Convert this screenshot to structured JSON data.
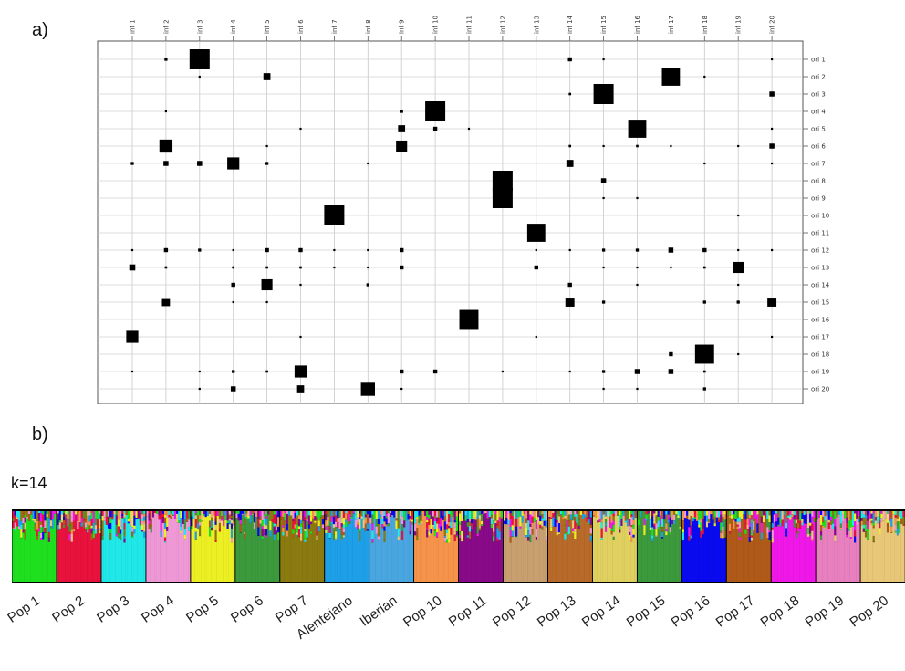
{
  "panel_a_label": "a)",
  "panel_b_label": "b)",
  "k_label": "k=14",
  "chart_data": [
    {
      "type": "heatmap",
      "title": "",
      "columns": [
        "inf 1",
        "inf 2",
        "inf 3",
        "inf 4",
        "inf 5",
        "inf 6",
        "inf 7",
        "inf 8",
        "inf 9",
        "inf 10",
        "inf 11",
        "inf 12",
        "inf 13",
        "inf 14",
        "inf 15",
        "inf 16",
        "inf 17",
        "inf 18",
        "inf 19",
        "inf 20"
      ],
      "rows": [
        "ori 1",
        "ori 2",
        "ori 3",
        "ori 4",
        "ori 5",
        "ori 6",
        "ori 7",
        "ori 8",
        "ori 9",
        "ori 10",
        "ori 11",
        "ori 12",
        "ori 13",
        "ori 14",
        "ori 15",
        "ori 16",
        "ori 17",
        "ori 18",
        "ori 19",
        "ori 20"
      ],
      "value_encoding": "square size (relative, 0-1)",
      "cells": [
        {
          "row": "ori 1",
          "col": "inf 2",
          "value": 0.15
        },
        {
          "row": "ori 1",
          "col": "inf 3",
          "value": 1.0
        },
        {
          "row": "ori 1",
          "col": "inf 14",
          "value": 0.2
        },
        {
          "row": "ori 1",
          "col": "inf 15",
          "value": 0.1
        },
        {
          "row": "ori 1",
          "col": "inf 20",
          "value": 0.1
        },
        {
          "row": "ori 2",
          "col": "inf 3",
          "value": 0.07
        },
        {
          "row": "ori 2",
          "col": "inf 5",
          "value": 0.35
        },
        {
          "row": "ori 2",
          "col": "inf 17",
          "value": 0.9
        },
        {
          "row": "ori 2",
          "col": "inf 18",
          "value": 0.07
        },
        {
          "row": "ori 3",
          "col": "inf 14",
          "value": 0.12
        },
        {
          "row": "ori 3",
          "col": "inf 15",
          "value": 1.0
        },
        {
          "row": "ori 3",
          "col": "inf 20",
          "value": 0.25
        },
        {
          "row": "ori 4",
          "col": "inf 2",
          "value": 0.07
        },
        {
          "row": "ori 4",
          "col": "inf 9",
          "value": 0.15
        },
        {
          "row": "ori 4",
          "col": "inf 10",
          "value": 1.0
        },
        {
          "row": "ori 5",
          "col": "inf 6",
          "value": 0.07
        },
        {
          "row": "ori 5",
          "col": "inf 9",
          "value": 0.35
        },
        {
          "row": "ori 5",
          "col": "inf 10",
          "value": 0.2
        },
        {
          "row": "ori 5",
          "col": "inf 11",
          "value": 0.07
        },
        {
          "row": "ori 5",
          "col": "inf 16",
          "value": 0.9
        },
        {
          "row": "ori 5",
          "col": "inf 20",
          "value": 0.07
        },
        {
          "row": "ori 6",
          "col": "inf 2",
          "value": 0.65
        },
        {
          "row": "ori 6",
          "col": "inf 5",
          "value": 0.07
        },
        {
          "row": "ori 6",
          "col": "inf 9",
          "value": 0.55
        },
        {
          "row": "ori 6",
          "col": "inf 14",
          "value": 0.12
        },
        {
          "row": "ori 6",
          "col": "inf 15",
          "value": 0.07
        },
        {
          "row": "ori 6",
          "col": "inf 16",
          "value": 0.12
        },
        {
          "row": "ori 6",
          "col": "inf 17",
          "value": 0.07
        },
        {
          "row": "ori 6",
          "col": "inf 19",
          "value": 0.07
        },
        {
          "row": "ori 6",
          "col": "inf 20",
          "value": 0.25
        },
        {
          "row": "ori 7",
          "col": "inf 1",
          "value": 0.15
        },
        {
          "row": "ori 7",
          "col": "inf 2",
          "value": 0.25
        },
        {
          "row": "ori 7",
          "col": "inf 3",
          "value": 0.25
        },
        {
          "row": "ori 7",
          "col": "inf 4",
          "value": 0.6
        },
        {
          "row": "ori 7",
          "col": "inf 5",
          "value": 0.15
        },
        {
          "row": "ori 7",
          "col": "inf 8",
          "value": 0.07
        },
        {
          "row": "ori 7",
          "col": "inf 14",
          "value": 0.35
        },
        {
          "row": "ori 7",
          "col": "inf 18",
          "value": 0.07
        },
        {
          "row": "ori 7",
          "col": "inf 20",
          "value": 0.07
        },
        {
          "row": "ori 8",
          "col": "inf 12",
          "value": 1.0
        },
        {
          "row": "ori 8",
          "col": "inf 15",
          "value": 0.25
        },
        {
          "row": "ori 9",
          "col": "inf 12",
          "value": 1.0
        },
        {
          "row": "ori 9",
          "col": "inf 15",
          "value": 0.07
        },
        {
          "row": "ori 9",
          "col": "inf 16",
          "value": 0.1
        },
        {
          "row": "ori 10",
          "col": "inf 7",
          "value": 1.0
        },
        {
          "row": "ori 10",
          "col": "inf 19",
          "value": 0.07
        },
        {
          "row": "ori 11",
          "col": "inf 13",
          "value": 0.9
        },
        {
          "row": "ori 12",
          "col": "inf 1",
          "value": 0.07
        },
        {
          "row": "ori 12",
          "col": "inf 2",
          "value": 0.2
        },
        {
          "row": "ori 12",
          "col": "inf 3",
          "value": 0.15
        },
        {
          "row": "ori 12",
          "col": "inf 4",
          "value": 0.07
        },
        {
          "row": "ori 12",
          "col": "inf 5",
          "value": 0.2
        },
        {
          "row": "ori 12",
          "col": "inf 6",
          "value": 0.2
        },
        {
          "row": "ori 12",
          "col": "inf 7",
          "value": 0.07
        },
        {
          "row": "ori 12",
          "col": "inf 8",
          "value": 0.07
        },
        {
          "row": "ori 12",
          "col": "inf 9",
          "value": 0.2
        },
        {
          "row": "ori 12",
          "col": "inf 13",
          "value": 0.07
        },
        {
          "row": "ori 12",
          "col": "inf 14",
          "value": 0.07
        },
        {
          "row": "ori 12",
          "col": "inf 15",
          "value": 0.15
        },
        {
          "row": "ori 12",
          "col": "inf 16",
          "value": 0.15
        },
        {
          "row": "ori 12",
          "col": "inf 17",
          "value": 0.25
        },
        {
          "row": "ori 12",
          "col": "inf 18",
          "value": 0.2
        },
        {
          "row": "ori 12",
          "col": "inf 19",
          "value": 0.07
        },
        {
          "row": "ori 12",
          "col": "inf 20",
          "value": 0.07
        },
        {
          "row": "ori 13",
          "col": "inf 1",
          "value": 0.3
        },
        {
          "row": "ori 13",
          "col": "inf 2",
          "value": 0.12
        },
        {
          "row": "ori 13",
          "col": "inf 4",
          "value": 0.12
        },
        {
          "row": "ori 13",
          "col": "inf 5",
          "value": 0.12
        },
        {
          "row": "ori 13",
          "col": "inf 6",
          "value": 0.12
        },
        {
          "row": "ori 13",
          "col": "inf 7",
          "value": 0.07
        },
        {
          "row": "ori 13",
          "col": "inf 8",
          "value": 0.07
        },
        {
          "row": "ori 13",
          "col": "inf 9",
          "value": 0.2
        },
        {
          "row": "ori 13",
          "col": "inf 13",
          "value": 0.2
        },
        {
          "row": "ori 13",
          "col": "inf 15",
          "value": 0.07
        },
        {
          "row": "ori 13",
          "col": "inf 16",
          "value": 0.07
        },
        {
          "row": "ori 13",
          "col": "inf 17",
          "value": 0.07
        },
        {
          "row": "ori 13",
          "col": "inf 18",
          "value": 0.12
        },
        {
          "row": "ori 13",
          "col": "inf 19",
          "value": 0.55
        },
        {
          "row": "ori 14",
          "col": "inf 4",
          "value": 0.2
        },
        {
          "row": "ori 14",
          "col": "inf 5",
          "value": 0.55
        },
        {
          "row": "ori 14",
          "col": "inf 6",
          "value": 0.07
        },
        {
          "row": "ori 14",
          "col": "inf 8",
          "value": 0.15
        },
        {
          "row": "ori 14",
          "col": "inf 14",
          "value": 0.2
        },
        {
          "row": "ori 14",
          "col": "inf 16",
          "value": 0.07
        },
        {
          "row": "ori 14",
          "col": "inf 19",
          "value": 0.07
        },
        {
          "row": "ori 15",
          "col": "inf 2",
          "value": 0.4
        },
        {
          "row": "ori 15",
          "col": "inf 4",
          "value": 0.07
        },
        {
          "row": "ori 15",
          "col": "inf 5",
          "value": 0.07
        },
        {
          "row": "ori 15",
          "col": "inf 14",
          "value": 0.45
        },
        {
          "row": "ori 15",
          "col": "inf 15",
          "value": 0.15
        },
        {
          "row": "ori 15",
          "col": "inf 18",
          "value": 0.15
        },
        {
          "row": "ori 15",
          "col": "inf 19",
          "value": 0.15
        },
        {
          "row": "ori 15",
          "col": "inf 20",
          "value": 0.45
        },
        {
          "row": "ori 16",
          "col": "inf 11",
          "value": 0.95
        },
        {
          "row": "ori 17",
          "col": "inf 1",
          "value": 0.6
        },
        {
          "row": "ori 17",
          "col": "inf 6",
          "value": 0.07
        },
        {
          "row": "ori 17",
          "col": "inf 13",
          "value": 0.07
        },
        {
          "row": "ori 17",
          "col": "inf 20",
          "value": 0.07
        },
        {
          "row": "ori 18",
          "col": "inf 17",
          "value": 0.2
        },
        {
          "row": "ori 18",
          "col": "inf 18",
          "value": 0.95
        },
        {
          "row": "ori 18",
          "col": "inf 19",
          "value": 0.07
        },
        {
          "row": "ori 19",
          "col": "inf 1",
          "value": 0.07
        },
        {
          "row": "ori 19",
          "col": "inf 3",
          "value": 0.07
        },
        {
          "row": "ori 19",
          "col": "inf 4",
          "value": 0.15
        },
        {
          "row": "ori 19",
          "col": "inf 5",
          "value": 0.12
        },
        {
          "row": "ori 19",
          "col": "inf 6",
          "value": 0.6
        },
        {
          "row": "ori 19",
          "col": "inf 9",
          "value": 0.2
        },
        {
          "row": "ori 19",
          "col": "inf 10",
          "value": 0.2
        },
        {
          "row": "ori 19",
          "col": "inf 12",
          "value": 0.07
        },
        {
          "row": "ori 19",
          "col": "inf 14",
          "value": 0.07
        },
        {
          "row": "ori 19",
          "col": "inf 15",
          "value": 0.15
        },
        {
          "row": "ori 19",
          "col": "inf 16",
          "value": 0.25
        },
        {
          "row": "ori 19",
          "col": "inf 17",
          "value": 0.25
        },
        {
          "row": "ori 19",
          "col": "inf 18",
          "value": 0.12
        },
        {
          "row": "ori 20",
          "col": "inf 3",
          "value": 0.07
        },
        {
          "row": "ori 20",
          "col": "inf 4",
          "value": 0.25
        },
        {
          "row": "ori 20",
          "col": "inf 6",
          "value": 0.35
        },
        {
          "row": "ori 20",
          "col": "inf 8",
          "value": 0.7
        },
        {
          "row": "ori 20",
          "col": "inf 9",
          "value": 0.07
        },
        {
          "row": "ori 20",
          "col": "inf 15",
          "value": 0.07
        },
        {
          "row": "ori 20",
          "col": "inf 16",
          "value": 0.07
        },
        {
          "row": "ori 20",
          "col": "inf 18",
          "value": 0.15
        }
      ],
      "grid": true
    },
    {
      "type": "bar",
      "title": "",
      "subtype": "stacked ancestry barplot (structure plot)",
      "k": 14,
      "categories": [
        "Pop 1",
        "Pop 2",
        "Pop 3",
        "Pop 4",
        "Pop 5",
        "Pop 6",
        "Pop 7",
        "Alentejano",
        "Iberian",
        "Pop 10",
        "Pop 11",
        "Pop 12",
        "Pop 13",
        "Pop 14",
        "Pop 15",
        "Pop 16",
        "Pop 17",
        "Pop 18",
        "Pop 19",
        "Pop 20"
      ],
      "dominant_cluster_colors": [
        "#1fe01f",
        "#e8123c",
        "#20e8e8",
        "#ef98d6",
        "#ecf023",
        "#3c9a3c",
        "#8a7a10",
        "#1ea0e8",
        "#4aa6e0",
        "#f5934a",
        "#880a88",
        "#c8a070",
        "#b86a2a",
        "#e0d060",
        "#3c9a3c",
        "#0a0af0",
        "#b05a1a",
        "#f018e8",
        "#e880c0",
        "#e8c878"
      ],
      "cluster_palette": [
        "#1fe01f",
        "#e8123c",
        "#20e8e8",
        "#ef98d6",
        "#ecf023",
        "#3c9a3c",
        "#8a7a10",
        "#1ea0e8",
        "#f5934a",
        "#880a88",
        "#0a0af0",
        "#f018e8",
        "#b05a1a",
        "#e8c878"
      ]
    }
  ]
}
